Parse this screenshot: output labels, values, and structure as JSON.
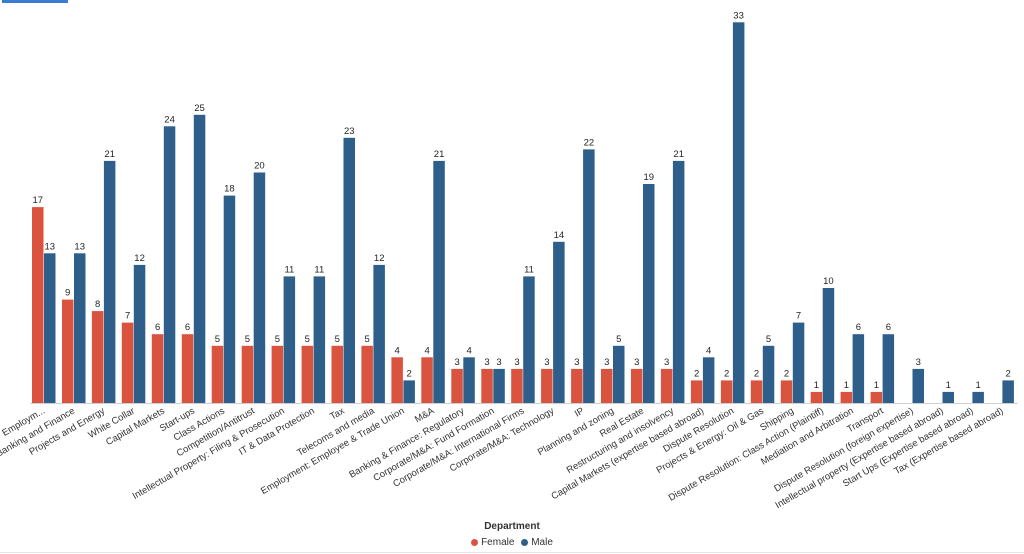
{
  "chart_data": {
    "type": "bar",
    "legend_title": "Department",
    "legend_position": "bottom-center",
    "categories": [
      "Employm...",
      "Banking and Finance",
      "Projects and Energy",
      "White Collar",
      "Capital Markets",
      "Start-ups",
      "Class Actions",
      "Competition/Antitrust",
      "Intellectual Property: Filing & Prosecution",
      "IT & Data Protection",
      "Tax",
      "Telecoms and media",
      "Employment: Employee & Trade Union",
      "M&A",
      "Banking & Finance: Regulatory",
      "Corporate/M&A: Fund Formation",
      "Corporate/M&A: International Firms",
      "Corporate/M&A: Technology",
      "IP",
      "Planning and zoning",
      "Real Estate",
      "Restructuring and insolvency",
      "Capital Markets (expertise based abroad)",
      "Dispute Resolution",
      "Projects & Energy: Oil & Gas",
      "Shipping",
      "Dispute Resolution: Class Action (Plaintiff)",
      "Mediation and Arbitration",
      "Transport",
      "Dispute Resolution (foreign expertise)",
      "Intellectual property (Expertise based abroad)",
      "Start Ups (Expertise based abroad)",
      "Tax (Expertise based abroad)"
    ],
    "series": [
      {
        "name": "Female",
        "color": "#d9533f",
        "values": [
          17,
          9,
          8,
          7,
          6,
          6,
          5,
          5,
          5,
          5,
          5,
          5,
          4,
          4,
          3,
          3,
          3,
          3,
          3,
          3,
          3,
          3,
          2,
          2,
          2,
          2,
          1,
          1,
          1,
          null,
          null,
          null,
          null
        ]
      },
      {
        "name": "Male",
        "color": "#2e5f8a",
        "values": [
          13,
          13,
          21,
          12,
          24,
          25,
          18,
          20,
          11,
          11,
          23,
          12,
          2,
          21,
          4,
          3,
          11,
          14,
          22,
          5,
          19,
          21,
          4,
          33,
          5,
          7,
          10,
          6,
          6,
          3,
          1,
          1,
          2
        ]
      }
    ],
    "ylim": [
      0,
      34
    ],
    "grid": false,
    "data_labels": true
  }
}
